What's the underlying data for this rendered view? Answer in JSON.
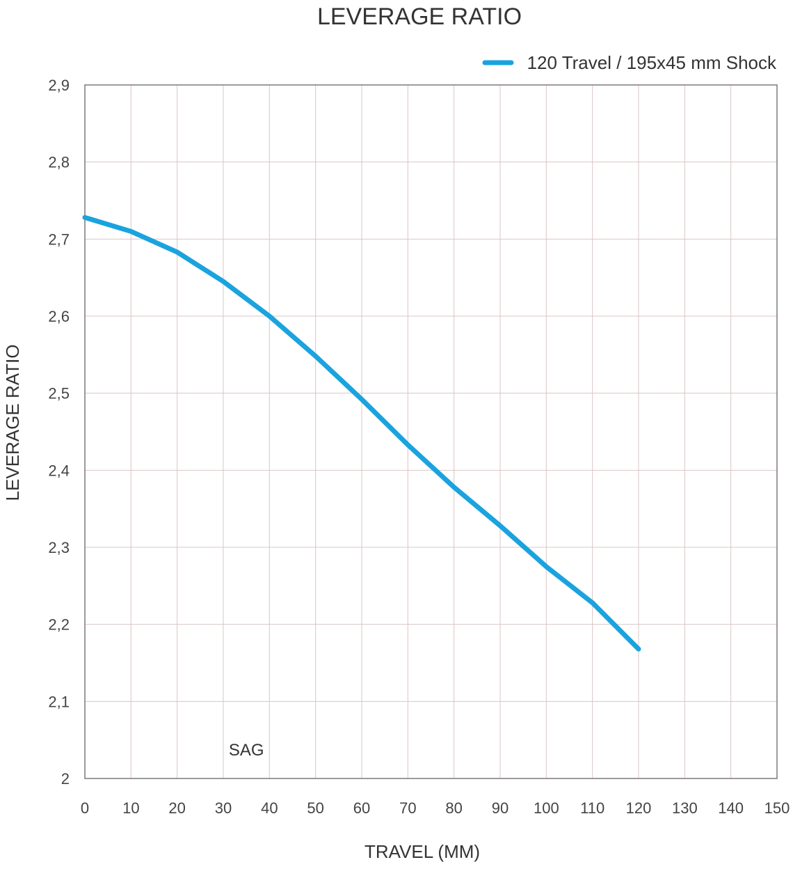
{
  "chart_data": {
    "type": "line",
    "title": "LEVERAGE RATIO",
    "xlabel": "TRAVEL (MM)",
    "ylabel": "LEVERAGE RATIO",
    "xlim": [
      0,
      150
    ],
    "ylim": [
      2.0,
      2.9
    ],
    "x_ticks": [
      0,
      10,
      20,
      30,
      40,
      50,
      60,
      70,
      80,
      90,
      100,
      110,
      120,
      130,
      140,
      150
    ],
    "x_tick_labels": [
      "0",
      "10",
      "20",
      "30",
      "40",
      "50",
      "60",
      "70",
      "80",
      "90",
      "100",
      "110",
      "120",
      "130",
      "140",
      "150"
    ],
    "y_ticks": [
      2.0,
      2.1,
      2.2,
      2.3,
      2.4,
      2.5,
      2.6,
      2.7,
      2.8,
      2.9
    ],
    "y_tick_labels": [
      "2",
      "2,1",
      "2,2",
      "2,3",
      "2,4",
      "2,5",
      "2,6",
      "2,7",
      "2,8",
      "2,9"
    ],
    "grid": true,
    "legend_position": "top-right",
    "series": [
      {
        "name": "120 Travel / 195x45 mm Shock",
        "color": "#1aa3de",
        "x": [
          0,
          10,
          20,
          30,
          40,
          50,
          60,
          70,
          80,
          90,
          100,
          110,
          120
        ],
        "y": [
          2.728,
          2.71,
          2.683,
          2.645,
          2.6,
          2.548,
          2.492,
          2.433,
          2.378,
          2.328,
          2.275,
          2.228,
          2.168
        ]
      }
    ],
    "annotations": [
      {
        "text": "SAG",
        "x": 35,
        "y": 2.03
      }
    ]
  }
}
